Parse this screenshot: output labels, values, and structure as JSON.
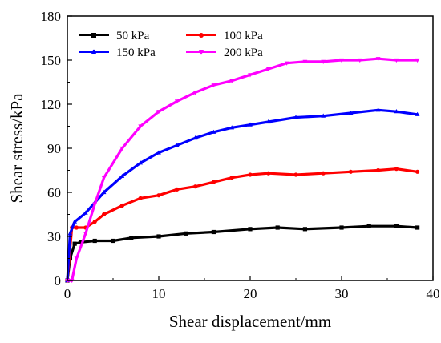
{
  "chart_data": {
    "type": "line",
    "title": "",
    "xlabel": "Shear displacement/mm",
    "ylabel": "Shear stress/kPa",
    "xlim": [
      0,
      40
    ],
    "ylim": [
      0,
      180
    ],
    "xticks": [
      0,
      10,
      20,
      30,
      40
    ],
    "yticks": [
      0,
      30,
      60,
      90,
      120,
      150,
      180
    ],
    "xtick_labels": [
      "0",
      "10",
      "20",
      "30",
      "40"
    ],
    "ytick_labels": [
      "0",
      "30",
      "60",
      "90",
      "120",
      "150",
      "180"
    ],
    "grid": false,
    "legend_position": "top-left",
    "series": [
      {
        "name": "50 kPa",
        "color": "#000000",
        "marker": "square",
        "points": [
          [
            0,
            0
          ],
          [
            0.3,
            15
          ],
          [
            0.8,
            25
          ],
          [
            1.5,
            26
          ],
          [
            3,
            27
          ],
          [
            5,
            27
          ],
          [
            7,
            29
          ],
          [
            10,
            30
          ],
          [
            13,
            32
          ],
          [
            16,
            33
          ],
          [
            20,
            35
          ],
          [
            23,
            36
          ],
          [
            26,
            35
          ],
          [
            30,
            36
          ],
          [
            33,
            37
          ],
          [
            36,
            37
          ],
          [
            38.3,
            36
          ]
        ]
      },
      {
        "name": "100 kPa",
        "color": "#ff0000",
        "marker": "circle",
        "points": [
          [
            0,
            0
          ],
          [
            0.5,
            36
          ],
          [
            1,
            36
          ],
          [
            2,
            36
          ],
          [
            3,
            40
          ],
          [
            4,
            45
          ],
          [
            6,
            51
          ],
          [
            8,
            56
          ],
          [
            10,
            58
          ],
          [
            12,
            62
          ],
          [
            14,
            64
          ],
          [
            16,
            67
          ],
          [
            18,
            70
          ],
          [
            20,
            72
          ],
          [
            22,
            73
          ],
          [
            25,
            72
          ],
          [
            28,
            73
          ],
          [
            31,
            74
          ],
          [
            34,
            75
          ],
          [
            36,
            76
          ],
          [
            38.3,
            74
          ]
        ]
      },
      {
        "name": "150 kPa",
        "color": "#0000ff",
        "marker": "triangle",
        "points": [
          [
            0,
            0
          ],
          [
            0.3,
            32
          ],
          [
            0.8,
            40
          ],
          [
            2,
            46
          ],
          [
            3,
            53
          ],
          [
            4,
            60
          ],
          [
            6,
            71
          ],
          [
            8,
            80
          ],
          [
            10,
            87
          ],
          [
            12,
            92
          ],
          [
            14,
            97
          ],
          [
            16,
            101
          ],
          [
            18,
            104
          ],
          [
            20,
            106
          ],
          [
            22,
            108
          ],
          [
            25,
            111
          ],
          [
            28,
            112
          ],
          [
            31,
            114
          ],
          [
            34,
            116
          ],
          [
            36,
            115
          ],
          [
            38.3,
            113
          ]
        ]
      },
      {
        "name": "200 kPa",
        "color": "#ff00ff",
        "marker": "triangle-down",
        "points": [
          [
            0,
            0
          ],
          [
            0.5,
            0
          ],
          [
            1,
            15
          ],
          [
            2,
            32
          ],
          [
            3,
            52
          ],
          [
            4,
            70
          ],
          [
            6,
            90
          ],
          [
            8,
            105
          ],
          [
            10,
            115
          ],
          [
            12,
            122
          ],
          [
            14,
            128
          ],
          [
            16,
            133
          ],
          [
            18,
            136
          ],
          [
            20,
            140
          ],
          [
            22,
            144
          ],
          [
            24,
            148
          ],
          [
            26,
            149
          ],
          [
            28,
            149
          ],
          [
            30,
            150
          ],
          [
            32,
            150
          ],
          [
            34,
            151
          ],
          [
            36,
            150
          ],
          [
            38.3,
            150
          ]
        ]
      }
    ]
  }
}
